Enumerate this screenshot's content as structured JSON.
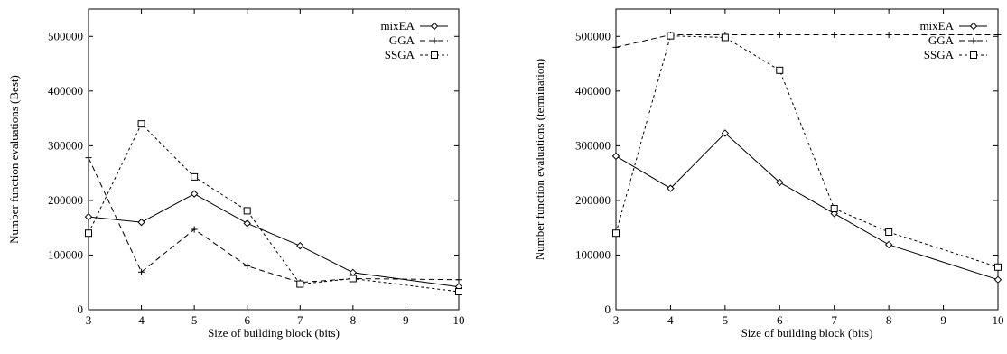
{
  "chart_data": [
    {
      "type": "line",
      "title": "",
      "xlabel": "Size of building block (bits)",
      "ylabel": "Number function evaluations (Best)",
      "xlim": [
        3,
        10
      ],
      "ylim": [
        0,
        550000
      ],
      "xticks": [
        "3",
        "4",
        "5",
        "6",
        "7",
        "8",
        "9",
        "10"
      ],
      "yticks": [
        "0",
        "100000",
        "200000",
        "300000",
        "400000",
        "500000"
      ],
      "grid": false,
      "legend": "top-right",
      "series": [
        {
          "name": "mixEA",
          "marker": "diamond",
          "dash": "solid",
          "x": [
            3,
            4,
            5,
            6,
            7,
            8,
            10
          ],
          "y": [
            170000,
            160000,
            212000,
            158000,
            117000,
            68000,
            42000
          ]
        },
        {
          "name": "GGA",
          "marker": "plus",
          "dash": "long",
          "x": [
            3,
            4,
            5,
            6,
            7,
            8,
            10
          ],
          "y": [
            278000,
            69000,
            147000,
            80000,
            50000,
            57000,
            55000
          ]
        },
        {
          "name": "SSGA",
          "marker": "square",
          "dash": "short",
          "x": [
            3,
            4,
            5,
            6,
            7,
            8,
            10
          ],
          "y": [
            140000,
            340000,
            243000,
            181000,
            47000,
            57000,
            33000
          ]
        }
      ]
    },
    {
      "type": "line",
      "title": "",
      "xlabel": "Size of building block (bits)",
      "ylabel": "Number function evaluations (termination)",
      "xlim": [
        3,
        10
      ],
      "ylim": [
        0,
        550000
      ],
      "xticks": [
        "3",
        "4",
        "5",
        "6",
        "7",
        "8",
        "9",
        "10"
      ],
      "yticks": [
        "0",
        "100000",
        "200000",
        "300000",
        "400000",
        "500000"
      ],
      "grid": false,
      "legend": "top-right",
      "series": [
        {
          "name": "mixEA",
          "marker": "diamond",
          "dash": "solid",
          "x": [
            3,
            4,
            5,
            6,
            7,
            8,
            10
          ],
          "y": [
            281000,
            222000,
            323000,
            233000,
            176000,
            119000,
            55000
          ]
        },
        {
          "name": "GGA",
          "marker": "plus",
          "dash": "long",
          "x": [
            3,
            4,
            5,
            6,
            7,
            8,
            10
          ],
          "y": [
            480000,
            503000,
            503000,
            503000,
            503000,
            503000,
            503000
          ]
        },
        {
          "name": "SSGA",
          "marker": "square",
          "dash": "short",
          "x": [
            3,
            4,
            5,
            6,
            7,
            8,
            10
          ],
          "y": [
            140000,
            501000,
            498000,
            438000,
            185000,
            142000,
            78000
          ]
        }
      ]
    }
  ]
}
